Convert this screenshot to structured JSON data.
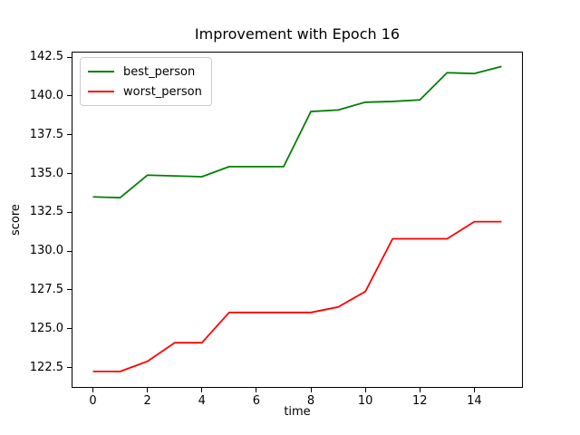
{
  "chart_data": {
    "type": "line",
    "title": "Improvement with Epoch 16",
    "xlabel": "time",
    "ylabel": "score",
    "x": [
      0,
      1,
      2,
      3,
      4,
      5,
      6,
      7,
      8,
      9,
      10,
      11,
      12,
      13,
      14,
      15
    ],
    "series": [
      {
        "name": "best_person",
        "color": "#008000",
        "values": [
          133.5,
          133.45,
          134.9,
          134.85,
          134.8,
          135.45,
          135.45,
          135.45,
          139.0,
          139.1,
          139.6,
          139.65,
          139.75,
          141.5,
          141.45,
          141.9
        ]
      },
      {
        "name": "worst_person",
        "color": "#ff0000",
        "values": [
          122.25,
          122.25,
          122.9,
          124.1,
          124.1,
          126.05,
          126.05,
          126.05,
          126.05,
          126.4,
          127.4,
          130.8,
          130.8,
          130.8,
          131.9,
          131.9
        ]
      }
    ],
    "xlim": [
      -0.75,
      15.75
    ],
    "ylim": [
      121.25,
      142.8
    ],
    "xticks": [
      "0",
      "2",
      "4",
      "6",
      "8",
      "10",
      "12",
      "14"
    ],
    "yticks": [
      "122.5",
      "125.0",
      "127.5",
      "130.0",
      "132.5",
      "135.0",
      "137.5",
      "140.0",
      "142.5"
    ],
    "grid": false,
    "legend_position": "upper-left",
    "line_width": 1.8,
    "background_color": "#ffffff",
    "frame_color": "#000000"
  }
}
